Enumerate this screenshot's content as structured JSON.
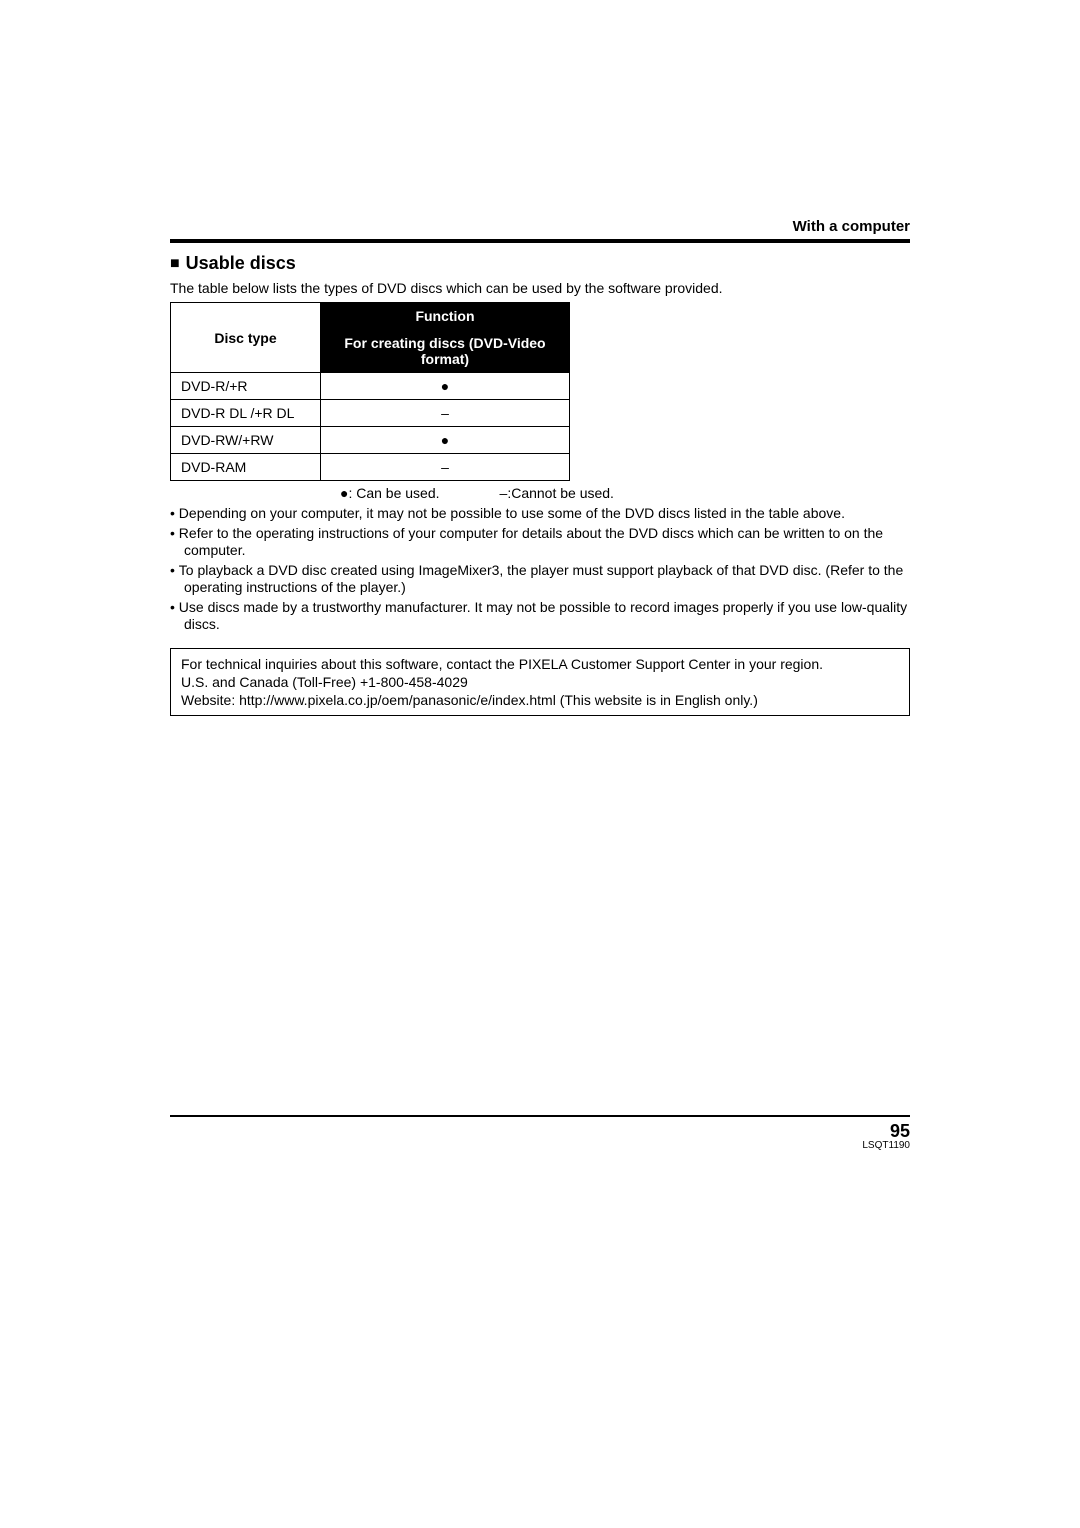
{
  "header": {
    "section_label": "With a computer"
  },
  "section": {
    "title": "Usable discs",
    "intro": "The table below lists the types of DVD discs which can be used by the software provided."
  },
  "table": {
    "col_disc_type": "Disc type",
    "col_function": "Function",
    "col_sub": "For creating discs (DVD-Video format)",
    "rows": [
      {
        "label": "DVD-R/+R",
        "mark": "●"
      },
      {
        "label": "DVD-R DL /+R DL",
        "mark": "–"
      },
      {
        "label": "DVD-RW/+RW",
        "mark": "●"
      },
      {
        "label": "DVD-RAM",
        "mark": "–"
      }
    ],
    "legend_can": "●: Can be used.",
    "legend_cannot": "–:Cannot be used."
  },
  "bullets": [
    "Depending on your computer, it may not be possible to use some of the DVD discs listed in the table above.",
    "Refer to the operating instructions of your computer for details about the DVD discs which can be written to on the computer.",
    "To playback a DVD disc created using ImageMixer3, the player must support playback of that DVD disc. (Refer to the operating instructions of the player.)",
    "Use discs made by a trustworthy manufacturer. It may not be possible to record images properly if you use low-quality discs."
  ],
  "infobox": {
    "line1": "For technical inquiries about this software, contact the PIXELA Customer Support Center in your region.",
    "line2": "U.S. and Canada (Toll-Free) +1-800-458-4029",
    "line3": "Website: http://www.pixela.co.jp/oem/panasonic/e/index.html (This website is in English only.)"
  },
  "footer": {
    "page_number": "95",
    "doc_id": "LSQT1190"
  }
}
